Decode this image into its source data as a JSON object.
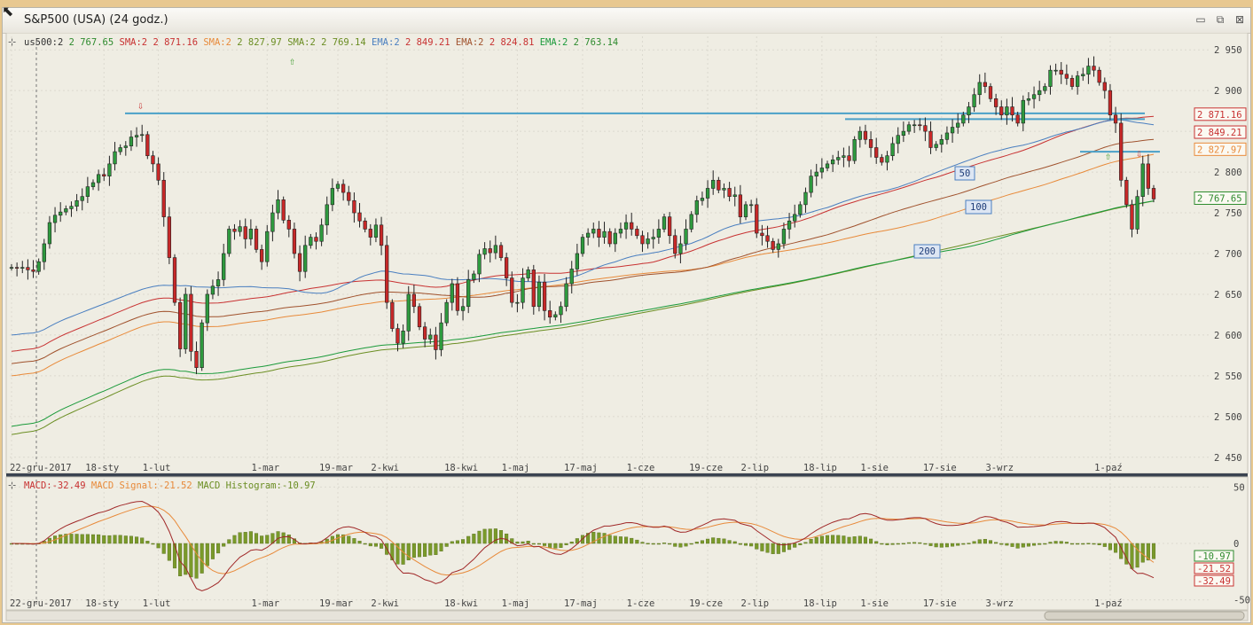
{
  "window": {
    "title": "S&P500 (USA) (24 godz.)",
    "controls": [
      "minimize-icon",
      "restore-icon",
      "close-icon"
    ]
  },
  "legend_top": [
    {
      "label": "us500:",
      "value": "2 767.65",
      "color": "#333333",
      "valcolor": "#2e8b2e"
    },
    {
      "label": "SMA:",
      "value": "2 871.16",
      "color": "#c83232",
      "valcolor": "#c83232"
    },
    {
      "label": "SMA:",
      "value": "2 827.97",
      "color": "#e88a3a",
      "valcolor": "#6b8e23"
    },
    {
      "label": "SMA:",
      "value": "2 769.14",
      "color": "#6b8e23",
      "valcolor": "#6b8e23"
    },
    {
      "label": "EMA:",
      "value": "2 849.21",
      "color": "#4a7fc0",
      "valcolor": "#c83232"
    },
    {
      "label": "EMA:",
      "value": "2 824.81",
      "color": "#a0522d",
      "valcolor": "#c83232"
    },
    {
      "label": "EMA:",
      "value": "2 763.14",
      "color": "#1a9a3a",
      "valcolor": "#2e8b2e"
    }
  ],
  "legend_macd": [
    {
      "label": "MACD:",
      "value": "-32.49",
      "color": "#c83232"
    },
    {
      "label": "MACD Signal:",
      "value": "-21.52",
      "color": "#e88a3a"
    },
    {
      "label": "MACD Histogram:",
      "value": "-10.97",
      "color": "#6b8e23"
    }
  ],
  "price_badges": [
    {
      "text": "2 871.16",
      "color": "#c83232"
    },
    {
      "text": "2 849.21",
      "color": "#c83232"
    },
    {
      "text": "2 827.97",
      "color": "#e88a3a"
    },
    {
      "text": "2 767.65",
      "color": "#2e8b2e"
    }
  ],
  "macd_badges": [
    {
      "text": "-10.97",
      "color": "#2e8b2e"
    },
    {
      "text": "-21.52",
      "color": "#c83232"
    },
    {
      "text": "-32.49",
      "color": "#c83232"
    }
  ],
  "ma_labels": [
    "50",
    "100",
    "200"
  ],
  "chart_data": [
    {
      "type": "candlestick",
      "title": "",
      "ylim": [
        2440,
        2960
      ],
      "yticks": [
        "2 950",
        "2 900",
        "2 850",
        "2 800",
        "2 750",
        "2 700",
        "2 650",
        "2 600",
        "2 550",
        "2 500",
        "2 450"
      ],
      "ytick_values": [
        2950,
        2900,
        2850,
        2800,
        2750,
        2700,
        2650,
        2600,
        2550,
        2500,
        2450
      ],
      "xticks": [
        "22-gru-2017",
        "18-sty",
        "1-lut",
        "1-mar",
        "19-mar",
        "2-kwi",
        "18-kwi",
        "1-maj",
        "17-maj",
        "1-cze",
        "19-cze",
        "2-lip",
        "18-lip",
        "1-sie",
        "17-sie",
        "3-wrz",
        "1-paź"
      ],
      "xtick_index": [
        0,
        17,
        27,
        47,
        60,
        69,
        83,
        93,
        105,
        116,
        128,
        137,
        149,
        159,
        171,
        182,
        202
      ],
      "closes": [
        2683,
        2682,
        2683,
        2680,
        2678,
        2690,
        2712,
        2738,
        2747,
        2751,
        2755,
        2758,
        2765,
        2770,
        2782,
        2787,
        2797,
        2795,
        2810,
        2825,
        2830,
        2832,
        2843,
        2845,
        2846,
        2820,
        2810,
        2790,
        2745,
        2695,
        2640,
        2583,
        2650,
        2580,
        2560,
        2615,
        2650,
        2660,
        2668,
        2700,
        2730,
        2727,
        2733,
        2718,
        2730,
        2705,
        2690,
        2727,
        2750,
        2766,
        2741,
        2730,
        2700,
        2678,
        2710,
        2720,
        2715,
        2735,
        2760,
        2780,
        2785,
        2775,
        2765,
        2750,
        2740,
        2730,
        2720,
        2735,
        2710,
        2640,
        2608,
        2590,
        2605,
        2650,
        2635,
        2610,
        2595,
        2600,
        2582,
        2615,
        2640,
        2663,
        2630,
        2635,
        2668,
        2675,
        2699,
        2706,
        2701,
        2710,
        2695,
        2670,
        2640,
        2640,
        2670,
        2680,
        2635,
        2665,
        2630,
        2622,
        2625,
        2635,
        2663,
        2681,
        2700,
        2720,
        2725,
        2730,
        2720,
        2727,
        2712,
        2725,
        2730,
        2738,
        2730,
        2722,
        2712,
        2718,
        2720,
        2730,
        2745,
        2722,
        2700,
        2712,
        2730,
        2748,
        2765,
        2768,
        2780,
        2790,
        2778,
        2780,
        2770,
        2772,
        2745,
        2760,
        2760,
        2725,
        2722,
        2715,
        2705,
        2712,
        2730,
        2740,
        2748,
        2760,
        2775,
        2795,
        2800,
        2805,
        2810,
        2815,
        2818,
        2820,
        2814,
        2840,
        2850,
        2840,
        2830,
        2818,
        2812,
        2820,
        2835,
        2845,
        2850,
        2858,
        2858,
        2857,
        2850,
        2830,
        2834,
        2840,
        2848,
        2855,
        2860,
        2870,
        2880,
        2895,
        2910,
        2905,
        2890,
        2880,
        2870,
        2880,
        2870,
        2860,
        2888,
        2890,
        2895,
        2900,
        2905,
        2925,
        2925,
        2920,
        2915,
        2905,
        2918,
        2920,
        2930,
        2925,
        2910,
        2900,
        2870,
        2860,
        2790,
        2760,
        2730,
        2770,
        2810,
        2780,
        2767
      ],
      "ma": [
        {
          "name": "SMA",
          "color": "#c83232",
          "start": 2580,
          "end": 2871
        },
        {
          "name": "SMA",
          "color": "#e88a3a",
          "start": 2550,
          "end": 2828
        },
        {
          "name": "SMA",
          "color": "#6b8e23",
          "start": 2478,
          "end": 2769
        },
        {
          "name": "EMA",
          "color": "#4a7fc0",
          "start": 2600,
          "end": 2849
        },
        {
          "name": "EMA",
          "color": "#a0522d",
          "start": 2565,
          "end": 2825
        },
        {
          "name": "EMA",
          "color": "#1a9a3a",
          "start": 2488,
          "end": 2763
        }
      ],
      "hlines": [
        2872,
        2865,
        2825
      ]
    },
    {
      "type": "bar",
      "title": "MACD",
      "ylim": [
        -55,
        55
      ],
      "yticks": [
        "50",
        "0",
        "-50"
      ],
      "ytick_values": [
        50,
        0,
        -50
      ]
    }
  ]
}
